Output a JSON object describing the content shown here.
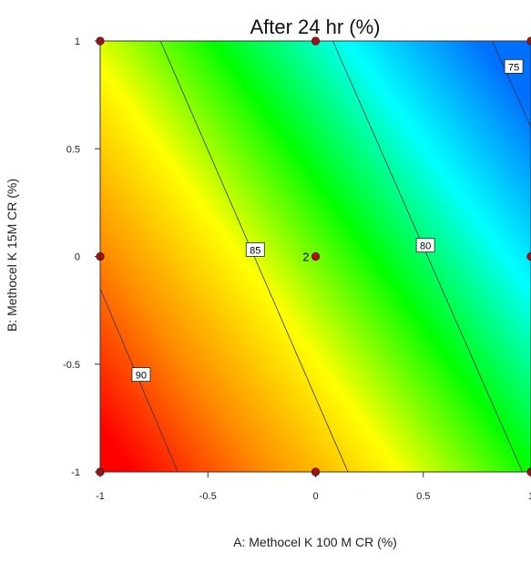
{
  "chart_data": {
    "type": "contour",
    "title": "After 24 hr (%)",
    "xlabel": "A: Methocel K 100 M CR (%)",
    "ylabel": "B: Methocel K 15M CR (%)",
    "xlim": [
      -1,
      1
    ],
    "ylim": [
      -1,
      1
    ],
    "x_ticks": [
      -1,
      -0.5,
      0,
      0.5,
      1
    ],
    "x_tick_labels": [
      "-1",
      "-0.5",
      "0",
      "0.5",
      "1"
    ],
    "y_ticks": [
      -1,
      -0.5,
      0,
      0.5,
      1
    ],
    "y_tick_labels": [
      "-1",
      "-0.5",
      "0",
      "0.5",
      "1"
    ],
    "grid": false,
    "color_scale": [
      "#ff0000",
      "#ff8c00",
      "#ffff00",
      "#00ff00",
      "#00ffff",
      "#0070ff"
    ],
    "contours": [
      {
        "level": 90,
        "label": "90",
        "start": [
          -1,
          -0.15
        ],
        "end": [
          -0.64,
          -1
        ],
        "label_at": [
          -0.81,
          -0.55
        ]
      },
      {
        "level": 85,
        "label": "85",
        "start": [
          -0.72,
          1
        ],
        "end": [
          0.15,
          -1
        ],
        "label_at": [
          -0.28,
          0.03
        ]
      },
      {
        "level": 80,
        "label": "80",
        "start": [
          0.08,
          1
        ],
        "end": [
          0.96,
          -1
        ],
        "label_at": [
          0.51,
          0.05
        ]
      },
      {
        "level": 75,
        "label": "75",
        "start": [
          0.82,
          1
        ],
        "end": [
          1,
          0.6
        ],
        "label_at": [
          0.92,
          0.88
        ]
      }
    ],
    "design_points": [
      {
        "x": -1,
        "y": 1
      },
      {
        "x": 0,
        "y": 1
      },
      {
        "x": 1,
        "y": 1
      },
      {
        "x": -1,
        "y": 0
      },
      {
        "x": 0,
        "y": 0,
        "label": "2"
      },
      {
        "x": 1,
        "y": 0
      },
      {
        "x": -1,
        "y": -1
      },
      {
        "x": 0,
        "y": -1
      },
      {
        "x": 1,
        "y": -1
      }
    ]
  }
}
